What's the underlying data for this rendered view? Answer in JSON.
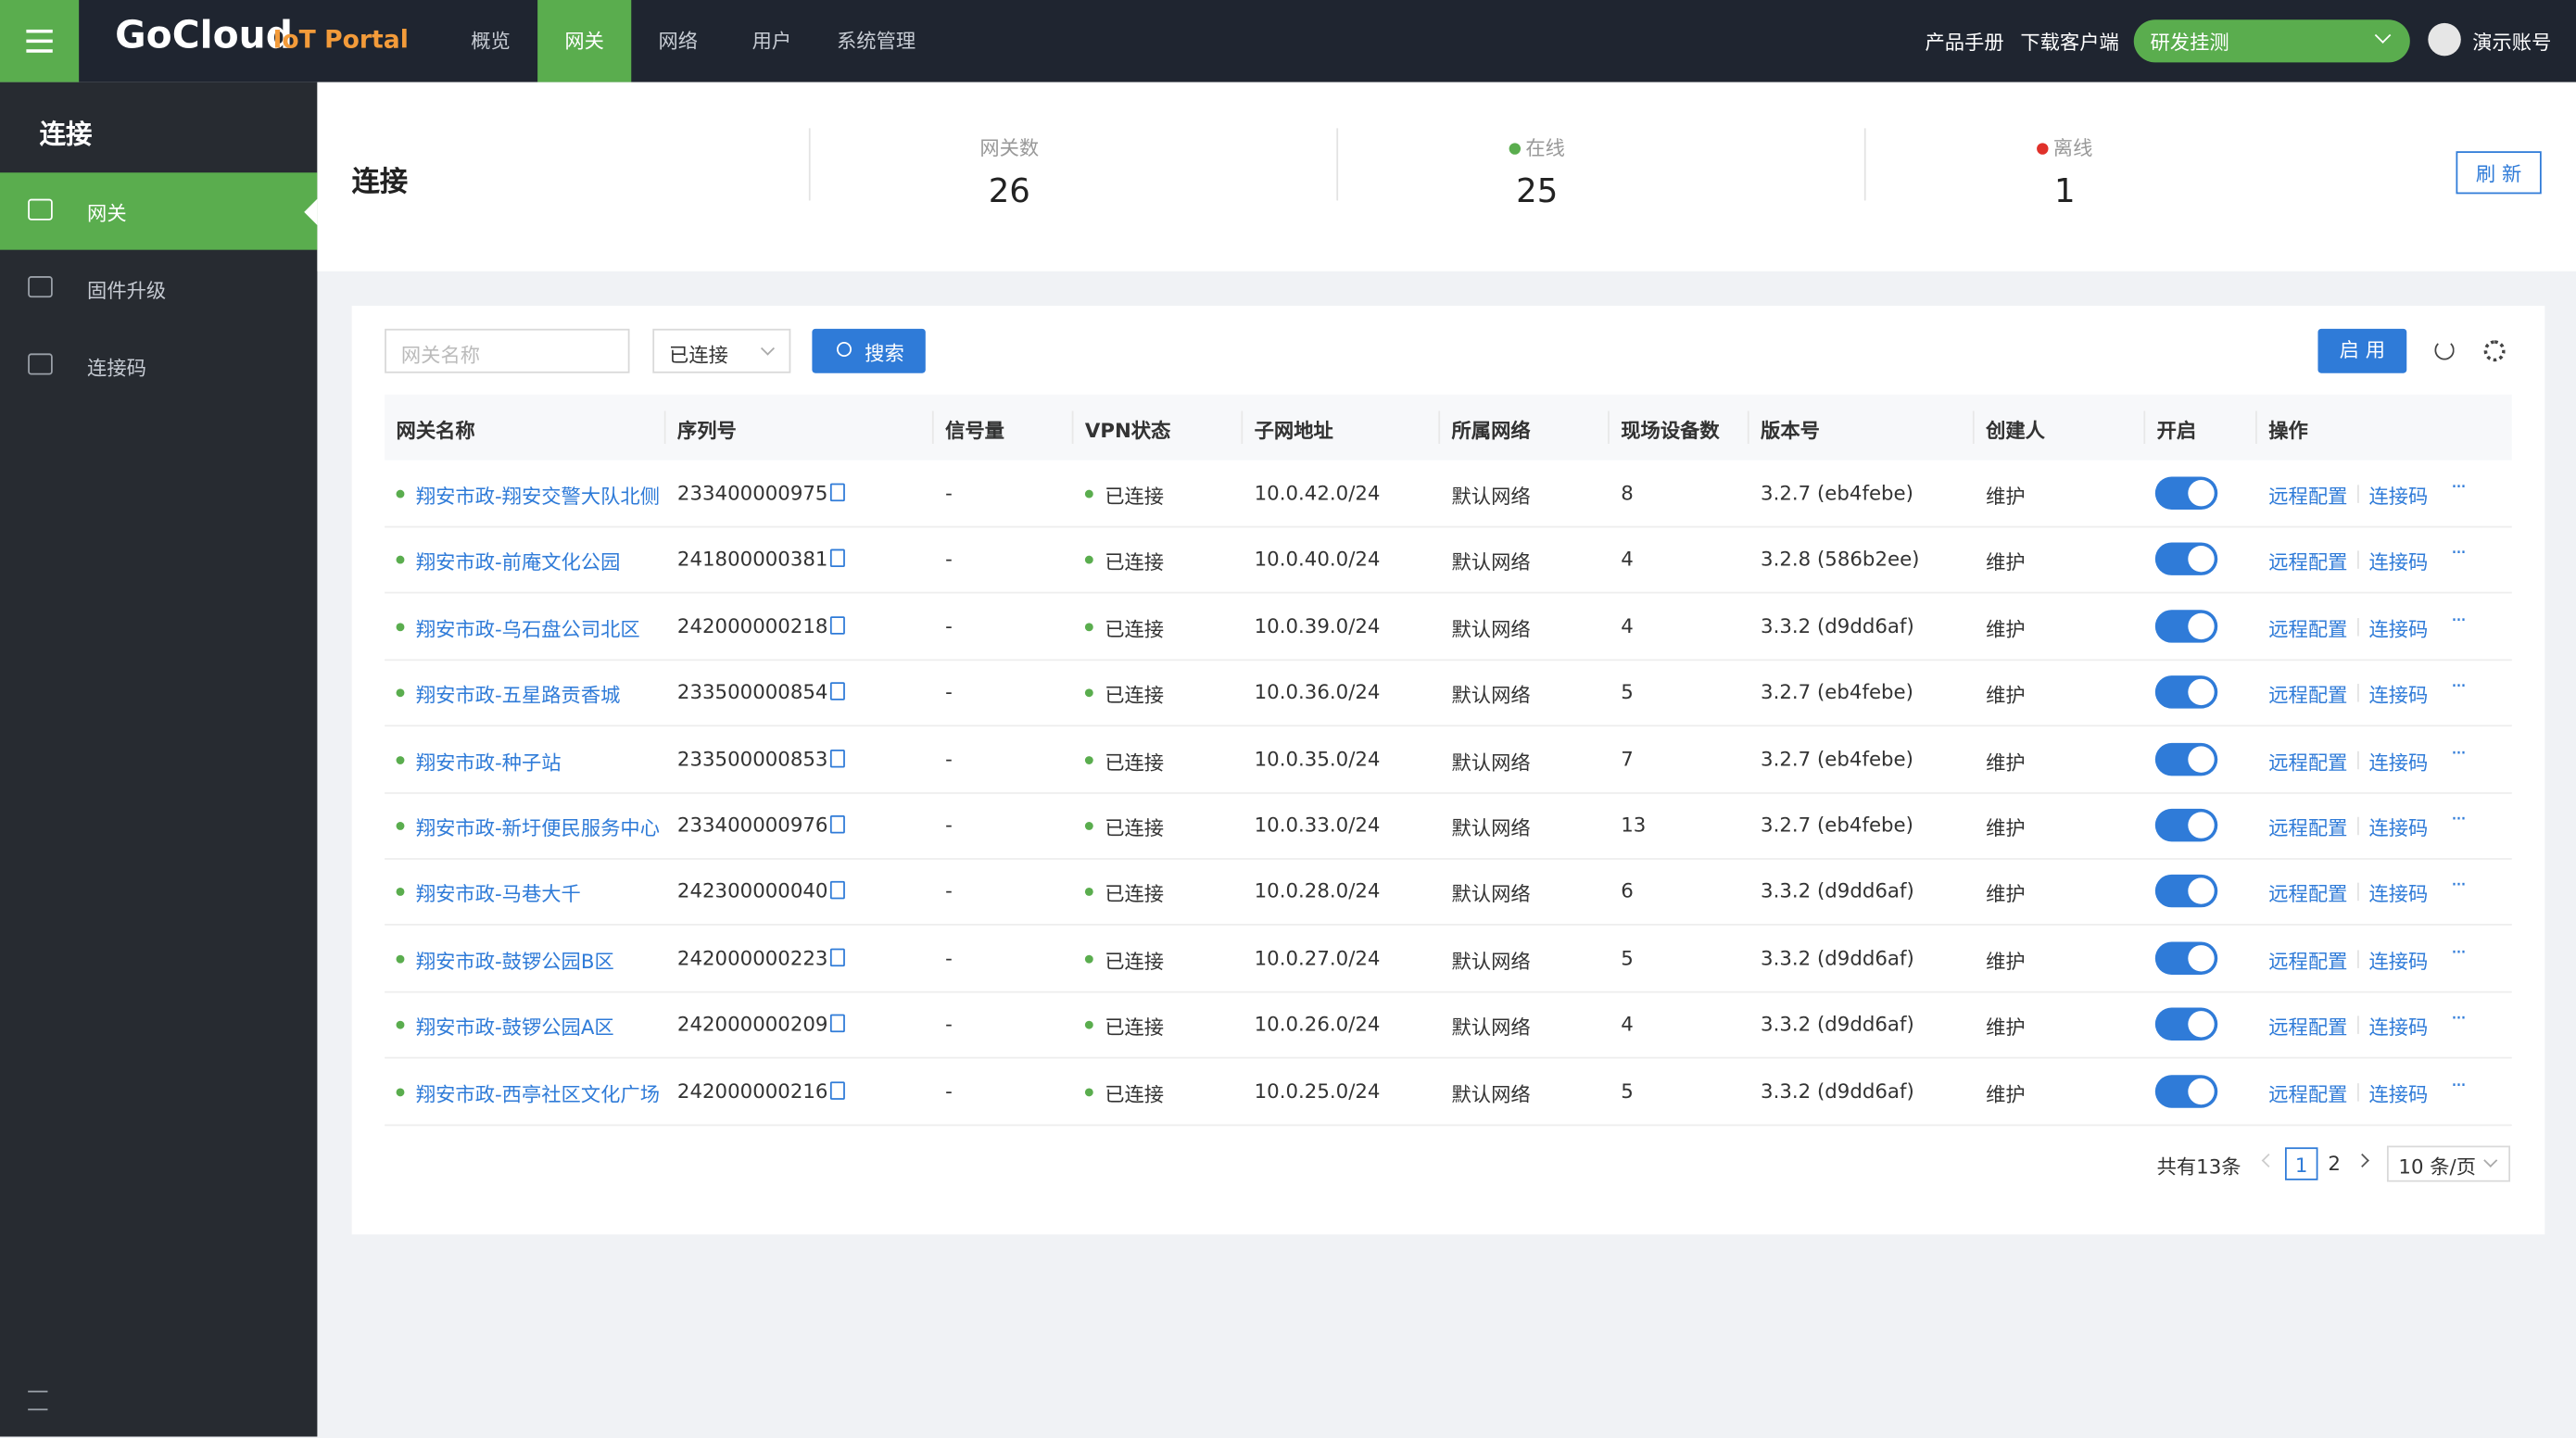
{
  "header": {
    "logo": "GoCloud",
    "logo_sub": "IoT Portal",
    "nav": [
      "概览",
      "网关",
      "网络",
      "用户",
      "系统管理"
    ],
    "active_nav_index": 1,
    "links": [
      "产品手册",
      "下载客户端"
    ],
    "org": "研发挂测",
    "account": "演示账号"
  },
  "sidebar": {
    "title": "连接",
    "items": [
      "网关",
      "固件升级",
      "连接码"
    ],
    "active_index": 0
  },
  "summary": {
    "title": "连接",
    "stats": [
      {
        "label": "网关数",
        "value": 26
      },
      {
        "label": "在线",
        "value": 25
      },
      {
        "label": "离线",
        "value": 1
      }
    ],
    "refresh": "刷 新"
  },
  "toolbar": {
    "search_placeholder": "网关名称",
    "status_filter": "已连接",
    "search_button": "搜索",
    "enable_button": "启 用"
  },
  "table": {
    "columns": [
      "网关名称",
      "序列号",
      "信号量",
      "VPN状态",
      "子网地址",
      "所属网络",
      "现场设备数",
      "版本号",
      "创建人",
      "开启",
      "操作"
    ],
    "rows": [
      [
        "翔安市政-翔安交警大队北侧",
        "233400000975",
        "-",
        "已连接",
        "10.0.42.0/24",
        "默认网络",
        "8",
        "3.2.7 (eb4febe)",
        "维护"
      ],
      [
        "翔安市政-前庵文化公园",
        "241800000381",
        "-",
        "已连接",
        "10.0.40.0/24",
        "默认网络",
        "4",
        "3.2.8 (586b2ee)",
        "维护"
      ],
      [
        "翔安市政-乌石盘公司北区",
        "242000000218",
        "-",
        "已连接",
        "10.0.39.0/24",
        "默认网络",
        "4",
        "3.3.2 (d9dd6af)",
        "维护"
      ],
      [
        "翔安市政-五星路贡香城",
        "233500000854",
        "-",
        "已连接",
        "10.0.36.0/24",
        "默认网络",
        "5",
        "3.2.7 (eb4febe)",
        "维护"
      ],
      [
        "翔安市政-种子站",
        "233500000853",
        "-",
        "已连接",
        "10.0.35.0/24",
        "默认网络",
        "7",
        "3.2.7 (eb4febe)",
        "维护"
      ],
      [
        "翔安市政-新圩便民服务中心",
        "233400000976",
        "-",
        "已连接",
        "10.0.33.0/24",
        "默认网络",
        "13",
        "3.2.7 (eb4febe)",
        "维护"
      ],
      [
        "翔安市政-马巷大千",
        "242300000040",
        "-",
        "已连接",
        "10.0.28.0/24",
        "默认网络",
        "6",
        "3.3.2 (d9dd6af)",
        "维护"
      ],
      [
        "翔安市政-鼓锣公园B区",
        "242000000223",
        "-",
        "已连接",
        "10.0.27.0/24",
        "默认网络",
        "5",
        "3.3.2 (d9dd6af)",
        "维护"
      ],
      [
        "翔安市政-鼓锣公园A区",
        "242000000209",
        "-",
        "已连接",
        "10.0.26.0/24",
        "默认网络",
        "4",
        "3.3.2 (d9dd6af)",
        "维护"
      ],
      [
        "翔安市政-西亭社区文化广场",
        "242000000216",
        "-",
        "已连接",
        "10.0.25.0/24",
        "默认网络",
        "5",
        "3.3.2 (d9dd6af)",
        "维护"
      ]
    ],
    "actions": [
      "远程配置",
      "连接码"
    ]
  },
  "pagination": {
    "total": "共有13条",
    "pages": [
      1,
      2
    ],
    "current": 1,
    "page_size": "10 条/页"
  }
}
